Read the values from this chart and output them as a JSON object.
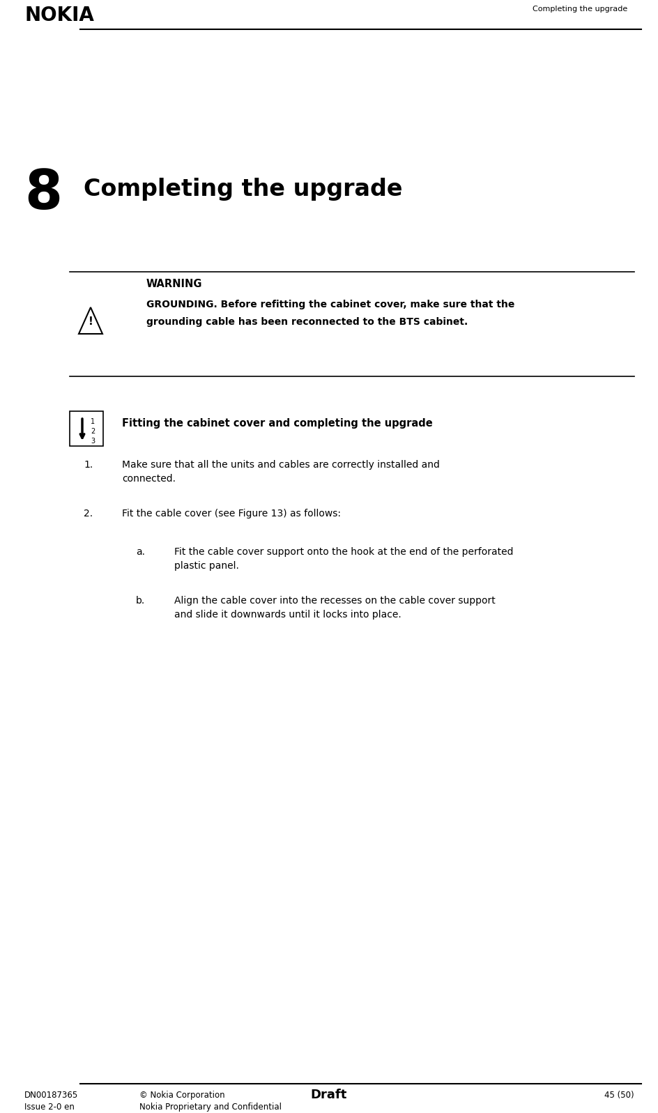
{
  "page_width": 9.44,
  "page_height": 15.97,
  "dpi": 100,
  "bg_color": "#ffffff",
  "header_logo": "NOKIA",
  "header_right": "Completing the upgrade",
  "chapter_number": "8",
  "chapter_title": "Completing the upgrade",
  "warning_title": "WARNING",
  "warning_body_line1": "GROUNDING. Before refitting the cabinet cover, make sure that the",
  "warning_body_line2": "grounding cable has been reconnected to the BTS cabinet.",
  "steps_title": "Fitting the cabinet cover and completing the upgrade",
  "step1_num": "1.",
  "step1_text_line1": "Make sure that all the units and cables are correctly installed and",
  "step1_text_line2": "connected.",
  "step2_num": "2.",
  "step2_text": "Fit the cable cover (see Figure 13) as follows:",
  "step2a_letter": "a.",
  "step2a_text_line1": "Fit the cable cover support onto the hook at the end of the perforated",
  "step2a_text_line2": "plastic panel.",
  "step2b_letter": "b.",
  "step2b_text_line1": "Align the cable cover into the recesses on the cable cover support",
  "step2b_text_line2": "and slide it downwards until it locks into place.",
  "footer_left1": "DN00187365",
  "footer_left2": "Issue 2-0 en",
  "footer_mid1": "© Nokia Corporation",
  "footer_mid2": "Nokia Proprietary and Confidential",
  "footer_draft": "Draft",
  "footer_right": "45 (50)"
}
